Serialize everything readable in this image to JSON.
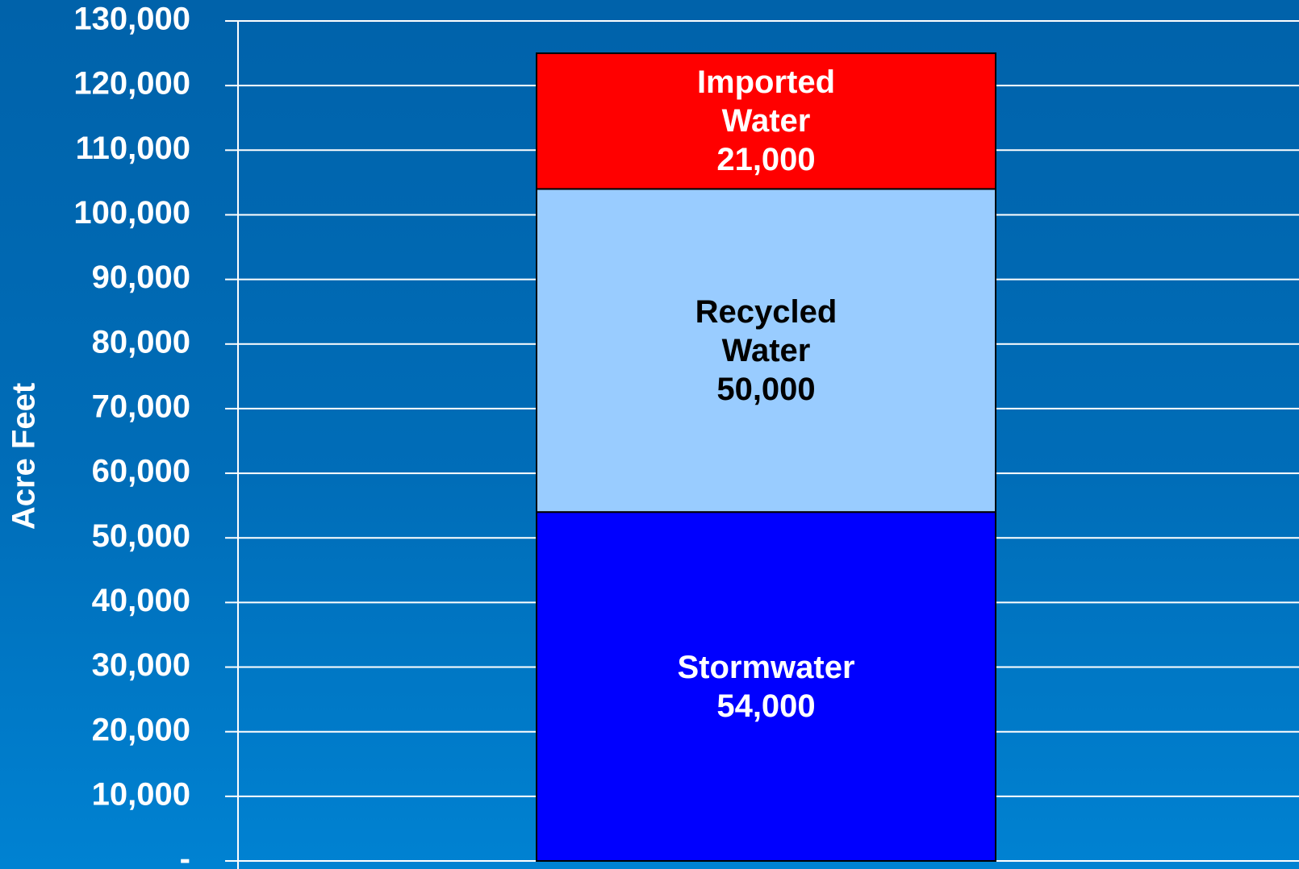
{
  "chart_data": {
    "type": "stacked_bar",
    "y_label": "Acre Feet",
    "categories": [
      null
    ],
    "series": [
      {
        "name": "Stormwater",
        "color": "#0000ff",
        "values": [
          54000
        ],
        "value_labels": [
          "54,000"
        ]
      },
      {
        "name": "Recycled Water",
        "color": "#99ccff",
        "values": [
          50000
        ],
        "value_labels": [
          "50,000"
        ]
      },
      {
        "name": "Imported Water",
        "color": "#ff0000",
        "values": [
          21000
        ],
        "value_labels": [
          "21,000"
        ]
      }
    ],
    "ylim": [
      0,
      130000
    ],
    "yticks": [
      {
        "value": 0,
        "label": "-"
      },
      {
        "value": 10000,
        "label": "10,000"
      },
      {
        "value": 20000,
        "label": "20,000"
      },
      {
        "value": 30000,
        "label": "30,000"
      },
      {
        "value": 40000,
        "label": "40,000"
      },
      {
        "value": 50000,
        "label": "50,000"
      },
      {
        "value": 60000,
        "label": "60,000"
      },
      {
        "value": 70000,
        "label": "70,000"
      },
      {
        "value": 80000,
        "label": "80,000"
      },
      {
        "value": 90000,
        "label": "90,000"
      },
      {
        "value": 100000,
        "label": "100,000"
      },
      {
        "value": 110000,
        "label": "110,000"
      },
      {
        "value": 120000,
        "label": "120,000"
      },
      {
        "value": 130000,
        "label": "130,000"
      }
    ],
    "grid": true
  }
}
